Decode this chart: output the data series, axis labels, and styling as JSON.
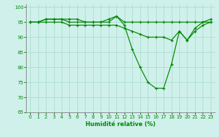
{
  "xlabel": "Humidité relative (%)",
  "background_color": "#cff0eb",
  "grid_color": "#aaddcc",
  "line_color": "#008800",
  "xlim": [
    -0.5,
    23.5
  ],
  "ylim": [
    65,
    101
  ],
  "yticks": [
    65,
    70,
    75,
    80,
    85,
    90,
    95,
    100
  ],
  "xticks": [
    0,
    1,
    2,
    3,
    4,
    5,
    6,
    7,
    8,
    9,
    10,
    11,
    12,
    13,
    14,
    15,
    16,
    17,
    18,
    19,
    20,
    21,
    22,
    23
  ],
  "series": {
    "top": [
      95,
      95,
      96,
      96,
      96,
      96,
      96,
      95,
      95,
      95,
      95,
      97,
      95,
      95,
      95,
      95,
      95,
      95,
      95,
      95,
      95,
      95,
      95,
      95
    ],
    "max": [
      95,
      95,
      96,
      96,
      96,
      95,
      95,
      95,
      95,
      95,
      96,
      97,
      94,
      86,
      80,
      75,
      73,
      73,
      81,
      92,
      89,
      93,
      95,
      96
    ],
    "min": [
      95,
      95,
      95,
      95,
      95,
      94,
      94,
      94,
      94,
      94,
      94,
      94,
      93,
      92,
      91,
      90,
      90,
      90,
      89,
      92,
      89,
      92,
      94,
      95
    ]
  }
}
